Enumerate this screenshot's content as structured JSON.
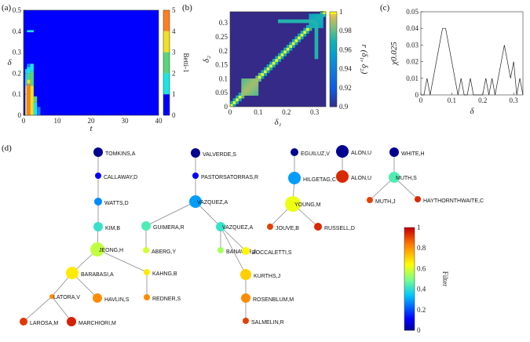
{
  "panels": {
    "a": {
      "label": "(a)"
    },
    "b": {
      "label": "(b)"
    },
    "c": {
      "label": "(c)"
    },
    "d": {
      "label": "(d)"
    }
  },
  "chart_data": [
    {
      "panel": "a",
      "type": "heatmap",
      "xlabel": "t",
      "ylabel": "δ",
      "xlim": [
        0,
        40
      ],
      "ylim": [
        0,
        0.5
      ],
      "xticks": [
        "0",
        "10",
        "20",
        "30",
        "40"
      ],
      "yticks": [
        "0",
        "0.1",
        "0.2",
        "0.3",
        "0.4",
        "0.5"
      ],
      "colorbar": {
        "label": "Betti-1",
        "ticks": [
          "0",
          "1",
          "2",
          "3",
          "4",
          "5"
        ],
        "range": [
          0,
          5
        ]
      },
      "background_value": 0,
      "cells": [
        {
          "t": [
            1,
            2
          ],
          "d": [
            0.0,
            0.15
          ],
          "v": 5
        },
        {
          "t": [
            1,
            2
          ],
          "d": [
            0.15,
            0.17
          ],
          "v": 4
        },
        {
          "t": [
            1,
            2
          ],
          "d": [
            0.17,
            0.2
          ],
          "v": 3
        },
        {
          "t": [
            1,
            2
          ],
          "d": [
            0.2,
            0.23
          ],
          "v": 2
        },
        {
          "t": [
            1,
            2
          ],
          "d": [
            0.23,
            0.245
          ],
          "v": 1
        },
        {
          "t": [
            2,
            3
          ],
          "d": [
            0.0,
            0.14
          ],
          "v": 4
        },
        {
          "t": [
            2,
            3
          ],
          "d": [
            0.14,
            0.21
          ],
          "v": 3
        },
        {
          "t": [
            2,
            3
          ],
          "d": [
            0.21,
            0.245
          ],
          "v": 2
        },
        {
          "t": [
            0.5,
            1
          ],
          "d": [
            0.0,
            0.14
          ],
          "v": 4
        },
        {
          "t": [
            0.5,
            1
          ],
          "d": [
            0.14,
            0.22
          ],
          "v": 2
        },
        {
          "t": [
            3,
            4
          ],
          "d": [
            0.0,
            0.06
          ],
          "v": 2
        },
        {
          "t": [
            3,
            4
          ],
          "d": [
            0.06,
            0.09
          ],
          "v": 3
        },
        {
          "t": [
            4,
            5
          ],
          "d": [
            0.0,
            0.04
          ],
          "v": 1
        },
        {
          "t": [
            1,
            3
          ],
          "d": [
            0.395,
            0.405
          ],
          "v": 2
        }
      ]
    },
    {
      "panel": "b",
      "type": "heatmap",
      "xlabel": "δ₁",
      "ylabel": "δ₂",
      "xlim": [
        0,
        0.34
      ],
      "ylim": [
        0,
        0.34
      ],
      "xticks": [
        "0",
        "0.1",
        "0.2",
        "0.3"
      ],
      "yticks": [
        "0",
        "0.05",
        "0.1",
        "0.15",
        "0.2",
        "0.25",
        "0.3",
        "0.35"
      ],
      "colorbar": {
        "label": "r (δ₁, δ₂)",
        "ticks": [
          "0.9",
          "0.92",
          "0.94",
          "0.96",
          "0.98",
          "1"
        ],
        "range": [
          0.9,
          1
        ]
      },
      "background_value": 0.9,
      "blocks": [
        {
          "range": [
            0.04,
            0.1
          ],
          "v": 0.99
        },
        {
          "range": [
            0.28,
            0.33
          ],
          "v": 0.97
        }
      ]
    },
    {
      "panel": "c",
      "type": "line",
      "xlabel": "δ",
      "ylabel": "χ0.025",
      "xlim": [
        0,
        0.33
      ],
      "ylim": [
        0,
        0.05
      ],
      "xticks": [
        "0",
        "0.1",
        "0.2",
        "0.3"
      ],
      "yticks": [
        "0",
        "0.01",
        "0.02",
        "0.03",
        "0.04",
        "0.05"
      ],
      "series": [
        {
          "x": [
            0,
            0.01,
            0.02,
            0.03,
            0.04,
            0.05,
            0.06,
            0.07,
            0.08,
            0.09,
            0.1,
            0.11,
            0.12,
            0.13,
            0.14,
            0.15,
            0.16,
            0.17,
            0.18,
            0.19,
            0.2,
            0.21,
            0.22,
            0.23,
            0.24,
            0.25,
            0.26,
            0.27,
            0.28,
            0.29,
            0.3,
            0.31,
            0.32,
            0.33
          ],
          "y": [
            0,
            0,
            0.01,
            0,
            0.01,
            0.02,
            0.03,
            0.04,
            0.04,
            0.03,
            0.02,
            0.01,
            0,
            0.01,
            0,
            0,
            0.01,
            0,
            0,
            0,
            0,
            0.01,
            0,
            0.01,
            0,
            0.01,
            0.02,
            0.03,
            0.02,
            0.01,
            0.02,
            0,
            0.01,
            0
          ]
        }
      ]
    }
  ],
  "tree": {
    "colorbar": {
      "label": "Filter",
      "ticks": [
        "0",
        "0.2",
        "0.4",
        "0.6",
        "0.8",
        "1"
      ],
      "range": [
        0,
        1
      ]
    },
    "nodes": [
      {
        "id": "tomkins",
        "label": "TOMKINS,A",
        "v": 0.0,
        "size": 6
      },
      {
        "id": "callaway",
        "label": "CALLAWAY,D",
        "v": 0.12,
        "size": 4
      },
      {
        "id": "watts",
        "label": "WATTS,D",
        "v": 0.28,
        "size": 5
      },
      {
        "id": "kim",
        "label": "KIM,B",
        "v": 0.42,
        "size": 6
      },
      {
        "id": "jeong",
        "label": "JEONG,H",
        "v": 0.58,
        "size": 9
      },
      {
        "id": "barabasi",
        "label": "BARABASI,A",
        "v": 0.68,
        "size": 8
      },
      {
        "id": "havlin",
        "label": "HAVLIN,S",
        "v": 0.82,
        "size": 6
      },
      {
        "id": "latora",
        "label": "LATORA,V",
        "v": 0.82,
        "size": 3
      },
      {
        "id": "larosa",
        "label": "LAROSA,M",
        "v": 0.93,
        "size": 5
      },
      {
        "id": "marchiori",
        "label": "MARCHIORI,M",
        "v": 0.96,
        "size": 6
      },
      {
        "id": "kahng",
        "label": "KAHNG,B",
        "v": 0.68,
        "size": 4
      },
      {
        "id": "redner",
        "label": "REDNER,S",
        "v": 0.82,
        "size": 4
      },
      {
        "id": "valverde",
        "label": "VALVERDE,S",
        "v": 0.0,
        "size": 6
      },
      {
        "id": "pastor",
        "label": "PASTORSATORRAS,R",
        "v": 0.12,
        "size": 4
      },
      {
        "id": "vazquezA",
        "label": "VAZQUEZ,A",
        "v": 0.3,
        "size": 8
      },
      {
        "id": "guimera",
        "label": "GUIMERA,R",
        "v": 0.45,
        "size": 6
      },
      {
        "id": "aberg",
        "label": "ABERG,Y",
        "v": 0.6,
        "size": 4
      },
      {
        "id": "vazquezA2",
        "label": "VAZQUEZ,A",
        "v": 0.42,
        "size": 6
      },
      {
        "id": "banavar",
        "label": "BANAVAR,J",
        "v": 0.55,
        "size": 4
      },
      {
        "id": "boccaletti",
        "label": "BOCCALETTI,S",
        "v": 0.66,
        "size": 5
      },
      {
        "id": "kurths",
        "label": "KURTHS,J",
        "v": 0.72,
        "size": 7
      },
      {
        "id": "rosenblum",
        "label": "ROSENBLUM,M",
        "v": 0.82,
        "size": 6
      },
      {
        "id": "salmelin",
        "label": "SALMELIN,R",
        "v": 0.92,
        "size": 4
      },
      {
        "id": "eguiluz",
        "label": "EGUILUZ,V",
        "v": 0.0,
        "size": 5
      },
      {
        "id": "hilgetag",
        "label": "HILGETAG,C",
        "v": 0.3,
        "size": 8
      },
      {
        "id": "young",
        "label": "YOUNG,M",
        "v": 0.63,
        "size": 10
      },
      {
        "id": "jouve",
        "label": "JOUVE,B",
        "v": 0.92,
        "size": 4
      },
      {
        "id": "russell",
        "label": "RUSSELL,D",
        "v": 0.95,
        "size": 5
      },
      {
        "id": "alonU",
        "label": "ALON,U",
        "v": 0.0,
        "size": 8
      },
      {
        "id": "alonU2",
        "label": "ALON,U",
        "v": 0.95,
        "size": 8
      },
      {
        "id": "white",
        "label": "WHITE,H",
        "v": 0.0,
        "size": 6
      },
      {
        "id": "muthS",
        "label": "MUTH,S",
        "v": 0.45,
        "size": 7
      },
      {
        "id": "muthJ",
        "label": "MUTH,J",
        "v": 0.92,
        "size": 4
      },
      {
        "id": "haythornthwaite",
        "label": "HAYTHORNTHWAITE,C",
        "v": 0.95,
        "size": 4
      }
    ],
    "edges": [
      [
        "tomkins",
        "callaway"
      ],
      [
        "callaway",
        "watts"
      ],
      [
        "watts",
        "kim"
      ],
      [
        "kim",
        "jeong"
      ],
      [
        "jeong",
        "barabasi"
      ],
      [
        "jeong",
        "kahng"
      ],
      [
        "barabasi",
        "havlin"
      ],
      [
        "barabasi",
        "latora"
      ],
      [
        "latora",
        "larosa"
      ],
      [
        "latora",
        "marchiori"
      ],
      [
        "kahng",
        "redner"
      ],
      [
        "valverde",
        "pastor"
      ],
      [
        "pastor",
        "vazquezA"
      ],
      [
        "vazquezA",
        "guimera"
      ],
      [
        "vazquezA",
        "vazquezA2"
      ],
      [
        "vazquezA",
        "jeong"
      ],
      [
        "guimera",
        "aberg"
      ],
      [
        "vazquezA2",
        "banavar"
      ],
      [
        "vazquezA2",
        "boccaletti"
      ],
      [
        "vazquezA2",
        "kurths"
      ],
      [
        "kurths",
        "rosenblum"
      ],
      [
        "rosenblum",
        "salmelin"
      ],
      [
        "eguiluz",
        "hilgetag"
      ],
      [
        "hilgetag",
        "young"
      ],
      [
        "young",
        "jouve"
      ],
      [
        "young",
        "russell"
      ],
      [
        "alonU",
        "alonU2"
      ],
      [
        "white",
        "muthS"
      ],
      [
        "muthS",
        "muthJ"
      ],
      [
        "muthS",
        "haythornthwaite"
      ]
    ]
  }
}
